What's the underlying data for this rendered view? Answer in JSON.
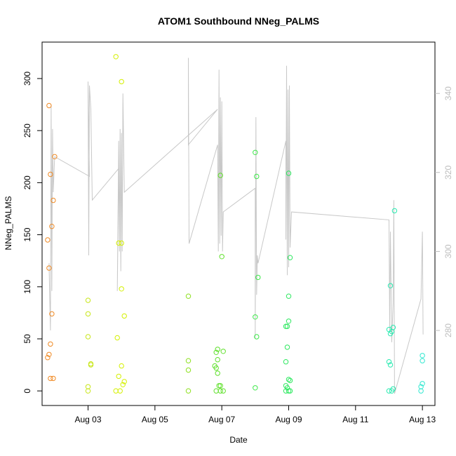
{
  "chart_data": {
    "type": "scatter",
    "title": "ATOM1 Southbound NNeg_PALMS",
    "xlabel": "Date",
    "ylabel": "NNeg_PALMS",
    "x_axis": {
      "kind": "date",
      "range": [
        "2016-08-01T15:00",
        "2016-08-13T09:00"
      ],
      "tick_labels": [
        "Aug 03",
        "Aug 05",
        "Aug 07",
        "Aug 09",
        "Aug 11",
        "Aug 13"
      ]
    },
    "ylim": [
      -14,
      335
    ],
    "y_ticks": [
      0,
      50,
      100,
      150,
      200,
      250,
      300
    ],
    "y2lim": [
      261,
      353
    ],
    "y2_ticks": [
      280,
      300,
      320,
      340
    ],
    "y2_color": "#bdbdbd",
    "line_color": "#c8c8c8",
    "point_style": "open-circle",
    "color_scale": "points colored by time: orange to yellow to green to cyan",
    "points": [
      {
        "x": "2016-08-01T20:00",
        "y": 274,
        "color": "#f08a24"
      },
      {
        "x": "2016-08-01T21:00",
        "y": 208,
        "color": "#f08a24"
      },
      {
        "x": "2016-08-01T19:00",
        "y": 145,
        "color": "#f08a24"
      },
      {
        "x": "2016-08-01T20:00",
        "y": 118,
        "color": "#f08a24"
      },
      {
        "x": "2016-08-01T22:00",
        "y": 74,
        "color": "#f08a24"
      },
      {
        "x": "2016-08-01T21:00",
        "y": 45,
        "color": "#f08a24"
      },
      {
        "x": "2016-08-01T20:00",
        "y": 35,
        "color": "#f08a24"
      },
      {
        "x": "2016-08-01T19:00",
        "y": 32,
        "color": "#f08a24"
      },
      {
        "x": "2016-08-01T21:00",
        "y": 12,
        "color": "#f08a24"
      },
      {
        "x": "2016-08-01T23:00",
        "y": 12,
        "color": "#f08a24"
      },
      {
        "x": "2016-08-02T00:00",
        "y": 225,
        "color": "#f08a24"
      },
      {
        "x": "2016-08-01T23:00",
        "y": 183,
        "color": "#f08a24"
      },
      {
        "x": "2016-08-01T22:00",
        "y": 158,
        "color": "#f08a24"
      },
      {
        "x": "2016-08-03T00:00",
        "y": 87,
        "color": "#c8e61a"
      },
      {
        "x": "2016-08-03T00:00",
        "y": 74,
        "color": "#c8e61a"
      },
      {
        "x": "2016-08-03T00:00",
        "y": 52,
        "color": "#c8e61a"
      },
      {
        "x": "2016-08-03T02:00",
        "y": 26,
        "color": "#c8e61a"
      },
      {
        "x": "2016-08-03T02:00",
        "y": 25,
        "color": "#c8e61a"
      },
      {
        "x": "2016-08-03T00:00",
        "y": 4,
        "color": "#c8e61a"
      },
      {
        "x": "2016-08-03T00:00",
        "y": 0,
        "color": "#c8e61a"
      },
      {
        "x": "2016-08-03T20:00",
        "y": 321,
        "color": "#d4f000"
      },
      {
        "x": "2016-08-04T00:00",
        "y": 297,
        "color": "#d4f000"
      },
      {
        "x": "2016-08-03T22:00",
        "y": 142,
        "color": "#d4f000"
      },
      {
        "x": "2016-08-04T00:00",
        "y": 142,
        "color": "#d4f000"
      },
      {
        "x": "2016-08-04T00:00",
        "y": 98,
        "color": "#d4f000"
      },
      {
        "x": "2016-08-04T02:00",
        "y": 72,
        "color": "#d4f000"
      },
      {
        "x": "2016-08-03T21:00",
        "y": 51,
        "color": "#d4f000"
      },
      {
        "x": "2016-08-04T00:00",
        "y": 24,
        "color": "#d4f000"
      },
      {
        "x": "2016-08-03T22:00",
        "y": 14,
        "color": "#d4f000"
      },
      {
        "x": "2016-08-04T02:00",
        "y": 9,
        "color": "#d4f000"
      },
      {
        "x": "2016-08-04T01:00",
        "y": 6,
        "color": "#d4f000"
      },
      {
        "x": "2016-08-03T20:00",
        "y": 0,
        "color": "#d4f000"
      },
      {
        "x": "2016-08-03T23:00",
        "y": 0,
        "color": "#d4f000"
      },
      {
        "x": "2016-08-06T00:00",
        "y": 91,
        "color": "#8ee020"
      },
      {
        "x": "2016-08-06T00:00",
        "y": 29,
        "color": "#8ee020"
      },
      {
        "x": "2016-08-06T00:00",
        "y": 20,
        "color": "#8ee020"
      },
      {
        "x": "2016-08-06T00:00",
        "y": 0,
        "color": "#8ee020"
      },
      {
        "x": "2016-08-06T23:00",
        "y": 207,
        "color": "#5ee02a"
      },
      {
        "x": "2016-08-07T00:00",
        "y": 129,
        "color": "#5ee02a"
      },
      {
        "x": "2016-08-06T21:00",
        "y": 40,
        "color": "#5ee02a"
      },
      {
        "x": "2016-08-07T01:00",
        "y": 38,
        "color": "#5ee02a"
      },
      {
        "x": "2016-08-06T20:00",
        "y": 37,
        "color": "#5ee02a"
      },
      {
        "x": "2016-08-06T21:00",
        "y": 30,
        "color": "#5ee02a"
      },
      {
        "x": "2016-08-06T19:00",
        "y": 24,
        "color": "#5ee02a"
      },
      {
        "x": "2016-08-06T20:00",
        "y": 22,
        "color": "#5ee02a"
      },
      {
        "x": "2016-08-06T21:00",
        "y": 17,
        "color": "#5ee02a"
      },
      {
        "x": "2016-08-06T22:00",
        "y": 5,
        "color": "#5ee02a"
      },
      {
        "x": "2016-08-06T23:00",
        "y": 5,
        "color": "#5ee02a"
      },
      {
        "x": "2016-08-06T20:00",
        "y": 0,
        "color": "#5ee02a"
      },
      {
        "x": "2016-08-06T23:00",
        "y": 0,
        "color": "#5ee02a"
      },
      {
        "x": "2016-08-07T01:00",
        "y": 0,
        "color": "#5ee02a"
      },
      {
        "x": "2016-08-08T00:00",
        "y": 229,
        "color": "#3ee84a"
      },
      {
        "x": "2016-08-08T01:00",
        "y": 206,
        "color": "#3ee84a"
      },
      {
        "x": "2016-08-08T02:00",
        "y": 109,
        "color": "#3ee84a"
      },
      {
        "x": "2016-08-08T00:00",
        "y": 71,
        "color": "#3ee84a"
      },
      {
        "x": "2016-08-08T01:00",
        "y": 52,
        "color": "#3ee84a"
      },
      {
        "x": "2016-08-08T00:00",
        "y": 3,
        "color": "#3ee84a"
      },
      {
        "x": "2016-08-09T00:00",
        "y": 209,
        "color": "#2ee860"
      },
      {
        "x": "2016-08-09T01:00",
        "y": 128,
        "color": "#2ee860"
      },
      {
        "x": "2016-08-09T00:00",
        "y": 91,
        "color": "#2ee860"
      },
      {
        "x": "2016-08-09T00:00",
        "y": 67,
        "color": "#2ee860"
      },
      {
        "x": "2016-08-08T23:00",
        "y": 62,
        "color": "#2ee860"
      },
      {
        "x": "2016-08-08T22:00",
        "y": 62,
        "color": "#2ee860"
      },
      {
        "x": "2016-08-08T23:00",
        "y": 42,
        "color": "#2ee860"
      },
      {
        "x": "2016-08-08T22:00",
        "y": 28,
        "color": "#2ee860"
      },
      {
        "x": "2016-08-09T00:00",
        "y": 11,
        "color": "#2ee860"
      },
      {
        "x": "2016-08-09T01:00",
        "y": 10,
        "color": "#2ee860"
      },
      {
        "x": "2016-08-08T22:00",
        "y": 5,
        "color": "#2ee860"
      },
      {
        "x": "2016-08-08T23:00",
        "y": 3,
        "color": "#2ee860"
      },
      {
        "x": "2016-08-08T22:00",
        "y": 0,
        "color": "#2ee860"
      },
      {
        "x": "2016-08-09T00:00",
        "y": 0,
        "color": "#2ee860"
      },
      {
        "x": "2016-08-09T01:00",
        "y": 0,
        "color": "#2ee860"
      },
      {
        "x": "2016-08-12T04:00",
        "y": 173,
        "color": "#28eab0"
      },
      {
        "x": "2016-08-12T01:00",
        "y": 101,
        "color": "#28eab0"
      },
      {
        "x": "2016-08-12T03:00",
        "y": 61,
        "color": "#28eab0"
      },
      {
        "x": "2016-08-12T00:00",
        "y": 59,
        "color": "#28eab0"
      },
      {
        "x": "2016-08-12T02:00",
        "y": 57,
        "color": "#28eab0"
      },
      {
        "x": "2016-08-12T01:00",
        "y": 55,
        "color": "#28eab0"
      },
      {
        "x": "2016-08-12T00:00",
        "y": 28,
        "color": "#28eab0"
      },
      {
        "x": "2016-08-12T01:00",
        "y": 25,
        "color": "#28eab0"
      },
      {
        "x": "2016-08-12T03:00",
        "y": 2,
        "color": "#28eab0"
      },
      {
        "x": "2016-08-12T00:00",
        "y": 0,
        "color": "#28eab0"
      },
      {
        "x": "2016-08-12T02:00",
        "y": 0,
        "color": "#28eab0"
      },
      {
        "x": "2016-08-13T00:00",
        "y": 34,
        "color": "#30e8d0"
      },
      {
        "x": "2016-08-13T00:00",
        "y": 29,
        "color": "#30e8d0"
      },
      {
        "x": "2016-08-13T00:00",
        "y": 7,
        "color": "#30e8d0"
      },
      {
        "x": "2016-08-12T23:00",
        "y": 4,
        "color": "#30e8d0"
      },
      {
        "x": "2016-08-12T23:00",
        "y": 0,
        "color": "#30e8d0"
      }
    ],
    "line_y2": [
      [
        "2016-08-01T20:00",
        297
      ],
      [
        "2016-08-01T20:30",
        288
      ],
      [
        "2016-08-01T21:00",
        280
      ],
      [
        "2016-08-01T21:30",
        337
      ],
      [
        "2016-08-01T22:00",
        290
      ],
      [
        "2016-08-01T22:30",
        331
      ],
      [
        "2016-08-01T23:00",
        315
      ],
      [
        "2016-08-02T00:00",
        324
      ],
      [
        "2016-08-03T01:00",
        319
      ],
      [
        "2016-08-03T00:00",
        343
      ],
      [
        "2016-08-03T00:30",
        299
      ],
      [
        "2016-08-03T01:00",
        342
      ],
      [
        "2016-08-03T02:00",
        336
      ],
      [
        "2016-08-03T03:00",
        313
      ],
      [
        "2016-08-03T22:00",
        321
      ],
      [
        "2016-08-03T21:00",
        290
      ],
      [
        "2016-08-03T22:00",
        328
      ],
      [
        "2016-08-03T22:30",
        300
      ],
      [
        "2016-08-03T23:00",
        331
      ],
      [
        "2016-08-03T23:30",
        295
      ],
      [
        "2016-08-04T00:00",
        330
      ],
      [
        "2016-08-04T00:30",
        300
      ],
      [
        "2016-08-04T01:00",
        340
      ],
      [
        "2016-08-04T02:00",
        315
      ],
      [
        "2016-08-06T21:00",
        336
      ],
      [
        "2016-08-06T00:00",
        327
      ],
      [
        "2016-08-06T00:00",
        349
      ],
      [
        "2016-08-06T00:30",
        302
      ],
      [
        "2016-08-06T21:00",
        327
      ],
      [
        "2016-08-06T21:30",
        300
      ],
      [
        "2016-08-06T22:00",
        346
      ],
      [
        "2016-08-06T22:30",
        302
      ],
      [
        "2016-08-06T23:00",
        339
      ],
      [
        "2016-08-06T23:30",
        304
      ],
      [
        "2016-08-07T00:00",
        338
      ],
      [
        "2016-08-07T00:30",
        300
      ],
      [
        "2016-08-07T01:00",
        310
      ],
      [
        "2016-08-08T00:00",
        316
      ],
      [
        "2016-08-08T00:00",
        278
      ],
      [
        "2016-08-08T00:30",
        334
      ],
      [
        "2016-08-08T01:00",
        289
      ],
      [
        "2016-08-08T01:30",
        299
      ],
      [
        "2016-08-08T02:00",
        297
      ],
      [
        "2016-08-08T22:00",
        328
      ],
      [
        "2016-08-08T22:00",
        303
      ],
      [
        "2016-08-08T22:30",
        347
      ],
      [
        "2016-08-08T23:00",
        294
      ],
      [
        "2016-08-08T23:30",
        341
      ],
      [
        "2016-08-09T00:00",
        296
      ],
      [
        "2016-08-09T00:30",
        342
      ],
      [
        "2016-08-09T01:00",
        301
      ],
      [
        "2016-08-09T02:00",
        310
      ],
      [
        "2016-08-12T00:00",
        308
      ],
      [
        "2016-08-12T00:30",
        280
      ],
      [
        "2016-08-12T01:00",
        305
      ],
      [
        "2016-08-12T02:00",
        277
      ],
      [
        "2016-08-12T03:00",
        287
      ],
      [
        "2016-08-12T03:30",
        313
      ],
      [
        "2016-08-12T04:00",
        264
      ],
      [
        "2016-08-12T23:00",
        288
      ],
      [
        "2016-08-13T00:00",
        305
      ],
      [
        "2016-08-13T00:30",
        279
      ]
    ]
  }
}
